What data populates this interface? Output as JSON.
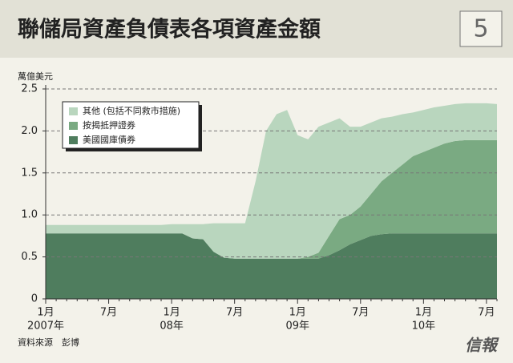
{
  "header": {
    "title": "聯儲局資產負債表各項資產金額",
    "badge": "5"
  },
  "footer": {
    "source": "資料來源　彭博",
    "logo": "信報"
  },
  "chart_data": {
    "type": "stacked-area",
    "y_label": "萬億美元",
    "categories": [
      "1月",
      null,
      null,
      null,
      null,
      null,
      "7月",
      null,
      null,
      null,
      null,
      null,
      "1月",
      null,
      null,
      null,
      null,
      null,
      "7月",
      null,
      null,
      null,
      null,
      null,
      "1月",
      null,
      null,
      null,
      null,
      null,
      "7月",
      null,
      null,
      null,
      null,
      null,
      "1月",
      null,
      null,
      null,
      null,
      null,
      "7月",
      null
    ],
    "category_years": [
      "2007年",
      null,
      null,
      null,
      null,
      null,
      null,
      null,
      null,
      null,
      null,
      null,
      "08年",
      null,
      null,
      null,
      null,
      null,
      null,
      null,
      null,
      null,
      null,
      null,
      "09年",
      null,
      null,
      null,
      null,
      null,
      null,
      null,
      null,
      null,
      null,
      null,
      "10年",
      null,
      null,
      null,
      null,
      null,
      null,
      null
    ],
    "series": [
      {
        "name": "其他 (包括不同救市措施)",
        "color": "#b9d6be",
        "values": [
          0.1,
          0.1,
          0.1,
          0.1,
          0.1,
          0.1,
          0.1,
          0.1,
          0.1,
          0.1,
          0.1,
          0.1,
          0.11,
          0.11,
          0.17,
          0.18,
          0.34,
          0.41,
          0.42,
          0.42,
          0.92,
          1.52,
          1.72,
          1.77,
          1.47,
          1.4,
          1.5,
          1.35,
          1.2,
          1.05,
          0.95,
          0.85,
          0.75,
          0.67,
          0.6,
          0.52,
          0.5,
          0.48,
          0.45,
          0.44,
          0.44,
          0.44,
          0.44,
          0.43
        ]
      },
      {
        "name": "按揭抵押證券",
        "color": "#7aaa82",
        "values": [
          0,
          0,
          0,
          0,
          0,
          0,
          0,
          0,
          0,
          0,
          0,
          0,
          0,
          0,
          0,
          0,
          0,
          0,
          0,
          0,
          0,
          0,
          0,
          0,
          0,
          0.02,
          0.07,
          0.23,
          0.37,
          0.35,
          0.4,
          0.5,
          0.63,
          0.72,
          0.82,
          0.92,
          0.97,
          1.02,
          1.07,
          1.1,
          1.11,
          1.11,
          1.11,
          1.11
        ]
      },
      {
        "name": "美國國庫債券",
        "color": "#4f7d5e",
        "values": [
          0.78,
          0.78,
          0.78,
          0.78,
          0.78,
          0.78,
          0.78,
          0.78,
          0.78,
          0.78,
          0.78,
          0.78,
          0.78,
          0.78,
          0.72,
          0.71,
          0.56,
          0.49,
          0.48,
          0.48,
          0.48,
          0.48,
          0.48,
          0.48,
          0.48,
          0.48,
          0.48,
          0.52,
          0.58,
          0.65,
          0.7,
          0.75,
          0.77,
          0.78,
          0.78,
          0.78,
          0.78,
          0.78,
          0.78,
          0.78,
          0.78,
          0.78,
          0.78,
          0.78
        ]
      }
    ],
    "ylim": [
      0,
      2.5
    ],
    "yticks": [
      0,
      0.5,
      {
        "value": 1,
        "label": "1.0"
      },
      1.5,
      {
        "value": 2,
        "label": "2.0"
      },
      2.5
    ],
    "grid": true
  }
}
